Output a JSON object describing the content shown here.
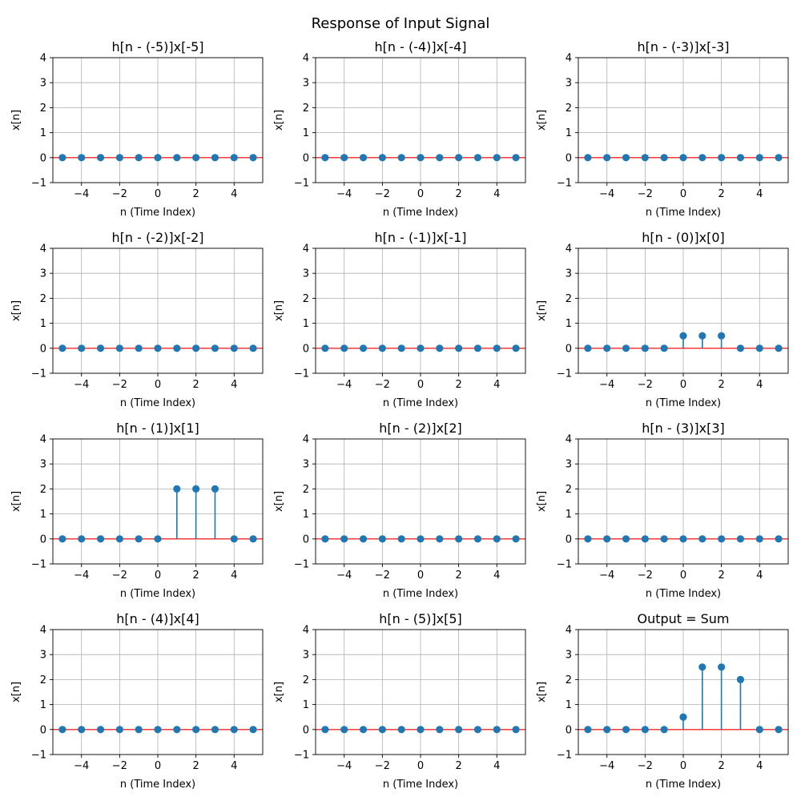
{
  "figure": {
    "title": "Response of Input Signal"
  },
  "colors": {
    "stem": "#1f77b4",
    "baseline": "#ff0000",
    "grid": "#b0b0b0",
    "axes": "#000000"
  },
  "chart_data": [
    {
      "type": "stem",
      "title": "h[n - (-5)]x[-5]",
      "xlabel": "n (Time Index)",
      "ylabel": "x[n]",
      "xlim": [
        -5.5,
        5.5
      ],
      "ylim": [
        -1,
        4
      ],
      "xticks": [
        -4,
        -2,
        0,
        2,
        4
      ],
      "yticks": [
        -1,
        0,
        1,
        2,
        3,
        4
      ],
      "grid": true,
      "x": [
        -5,
        -4,
        -3,
        -2,
        -1,
        0,
        1,
        2,
        3,
        4,
        5
      ],
      "y": [
        0,
        0,
        0,
        0,
        0,
        0,
        0,
        0,
        0,
        0,
        0
      ]
    },
    {
      "type": "stem",
      "title": "h[n - (-4)]x[-4]",
      "xlabel": "n (Time Index)",
      "ylabel": "x[n]",
      "xlim": [
        -5.5,
        5.5
      ],
      "ylim": [
        -1,
        4
      ],
      "xticks": [
        -4,
        -2,
        0,
        2,
        4
      ],
      "yticks": [
        -1,
        0,
        1,
        2,
        3,
        4
      ],
      "grid": true,
      "x": [
        -5,
        -4,
        -3,
        -2,
        -1,
        0,
        1,
        2,
        3,
        4,
        5
      ],
      "y": [
        0,
        0,
        0,
        0,
        0,
        0,
        0,
        0,
        0,
        0,
        0
      ]
    },
    {
      "type": "stem",
      "title": "h[n - (-3)]x[-3]",
      "xlabel": "n (Time Index)",
      "ylabel": "x[n]",
      "xlim": [
        -5.5,
        5.5
      ],
      "ylim": [
        -1,
        4
      ],
      "xticks": [
        -4,
        -2,
        0,
        2,
        4
      ],
      "yticks": [
        -1,
        0,
        1,
        2,
        3,
        4
      ],
      "grid": true,
      "x": [
        -5,
        -4,
        -3,
        -2,
        -1,
        0,
        1,
        2,
        3,
        4,
        5
      ],
      "y": [
        0,
        0,
        0,
        0,
        0,
        0,
        0,
        0,
        0,
        0,
        0
      ]
    },
    {
      "type": "stem",
      "title": "h[n - (-2)]x[-2]",
      "xlabel": "n (Time Index)",
      "ylabel": "x[n]",
      "xlim": [
        -5.5,
        5.5
      ],
      "ylim": [
        -1,
        4
      ],
      "xticks": [
        -4,
        -2,
        0,
        2,
        4
      ],
      "yticks": [
        -1,
        0,
        1,
        2,
        3,
        4
      ],
      "grid": true,
      "x": [
        -5,
        -4,
        -3,
        -2,
        -1,
        0,
        1,
        2,
        3,
        4,
        5
      ],
      "y": [
        0,
        0,
        0,
        0,
        0,
        0,
        0,
        0,
        0,
        0,
        0
      ]
    },
    {
      "type": "stem",
      "title": "h[n - (-1)]x[-1]",
      "xlabel": "n (Time Index)",
      "ylabel": "x[n]",
      "xlim": [
        -5.5,
        5.5
      ],
      "ylim": [
        -1,
        4
      ],
      "xticks": [
        -4,
        -2,
        0,
        2,
        4
      ],
      "yticks": [
        -1,
        0,
        1,
        2,
        3,
        4
      ],
      "grid": true,
      "x": [
        -5,
        -4,
        -3,
        -2,
        -1,
        0,
        1,
        2,
        3,
        4,
        5
      ],
      "y": [
        0,
        0,
        0,
        0,
        0,
        0,
        0,
        0,
        0,
        0,
        0
      ]
    },
    {
      "type": "stem",
      "title": "h[n - (0)]x[0]",
      "xlabel": "n (Time Index)",
      "ylabel": "x[n]",
      "xlim": [
        -5.5,
        5.5
      ],
      "ylim": [
        -1,
        4
      ],
      "xticks": [
        -4,
        -2,
        0,
        2,
        4
      ],
      "yticks": [
        -1,
        0,
        1,
        2,
        3,
        4
      ],
      "grid": true,
      "x": [
        -5,
        -4,
        -3,
        -2,
        -1,
        0,
        1,
        2,
        3,
        4,
        5
      ],
      "y": [
        0,
        0,
        0,
        0,
        0,
        0.5,
        0.5,
        0.5,
        0,
        0,
        0
      ]
    },
    {
      "type": "stem",
      "title": "h[n - (1)]x[1]",
      "xlabel": "n (Time Index)",
      "ylabel": "x[n]",
      "xlim": [
        -5.5,
        5.5
      ],
      "ylim": [
        -1,
        4
      ],
      "xticks": [
        -4,
        -2,
        0,
        2,
        4
      ],
      "yticks": [
        -1,
        0,
        1,
        2,
        3,
        4
      ],
      "grid": true,
      "x": [
        -5,
        -4,
        -3,
        -2,
        -1,
        0,
        1,
        2,
        3,
        4,
        5
      ],
      "y": [
        0,
        0,
        0,
        0,
        0,
        0,
        2,
        2,
        2,
        0,
        0
      ]
    },
    {
      "type": "stem",
      "title": "h[n - (2)]x[2]",
      "xlabel": "n (Time Index)",
      "ylabel": "x[n]",
      "xlim": [
        -5.5,
        5.5
      ],
      "ylim": [
        -1,
        4
      ],
      "xticks": [
        -4,
        -2,
        0,
        2,
        4
      ],
      "yticks": [
        -1,
        0,
        1,
        2,
        3,
        4
      ],
      "grid": true,
      "x": [
        -5,
        -4,
        -3,
        -2,
        -1,
        0,
        1,
        2,
        3,
        4,
        5
      ],
      "y": [
        0,
        0,
        0,
        0,
        0,
        0,
        0,
        0,
        0,
        0,
        0
      ]
    },
    {
      "type": "stem",
      "title": "h[n - (3)]x[3]",
      "xlabel": "n (Time Index)",
      "ylabel": "x[n]",
      "xlim": [
        -5.5,
        5.5
      ],
      "ylim": [
        -1,
        4
      ],
      "xticks": [
        -4,
        -2,
        0,
        2,
        4
      ],
      "yticks": [
        -1,
        0,
        1,
        2,
        3,
        4
      ],
      "grid": true,
      "x": [
        -5,
        -4,
        -3,
        -2,
        -1,
        0,
        1,
        2,
        3,
        4,
        5
      ],
      "y": [
        0,
        0,
        0,
        0,
        0,
        0,
        0,
        0,
        0,
        0,
        0
      ]
    },
    {
      "type": "stem",
      "title": "h[n - (4)]x[4]",
      "xlabel": "n (Time Index)",
      "ylabel": "x[n]",
      "xlim": [
        -5.5,
        5.5
      ],
      "ylim": [
        -1,
        4
      ],
      "xticks": [
        -4,
        -2,
        0,
        2,
        4
      ],
      "yticks": [
        -1,
        0,
        1,
        2,
        3,
        4
      ],
      "grid": true,
      "x": [
        -5,
        -4,
        -3,
        -2,
        -1,
        0,
        1,
        2,
        3,
        4,
        5
      ],
      "y": [
        0,
        0,
        0,
        0,
        0,
        0,
        0,
        0,
        0,
        0,
        0
      ]
    },
    {
      "type": "stem",
      "title": "h[n - (5)]x[5]",
      "xlabel": "n (Time Index)",
      "ylabel": "x[n]",
      "xlim": [
        -5.5,
        5.5
      ],
      "ylim": [
        -1,
        4
      ],
      "xticks": [
        -4,
        -2,
        0,
        2,
        4
      ],
      "yticks": [
        -1,
        0,
        1,
        2,
        3,
        4
      ],
      "grid": true,
      "x": [
        -5,
        -4,
        -3,
        -2,
        -1,
        0,
        1,
        2,
        3,
        4,
        5
      ],
      "y": [
        0,
        0,
        0,
        0,
        0,
        0,
        0,
        0,
        0,
        0,
        0
      ]
    },
    {
      "type": "stem",
      "title": "Output = Sum",
      "xlabel": "n (Time Index)",
      "ylabel": "x[n]",
      "xlim": [
        -5.5,
        5.5
      ],
      "ylim": [
        -1,
        4
      ],
      "xticks": [
        -4,
        -2,
        0,
        2,
        4
      ],
      "yticks": [
        -1,
        0,
        1,
        2,
        3,
        4
      ],
      "grid": true,
      "x": [
        -5,
        -4,
        -3,
        -2,
        -1,
        0,
        1,
        2,
        3,
        4,
        5
      ],
      "y": [
        0,
        0,
        0,
        0,
        0,
        0.5,
        2.5,
        2.5,
        2,
        0,
        0
      ]
    }
  ]
}
